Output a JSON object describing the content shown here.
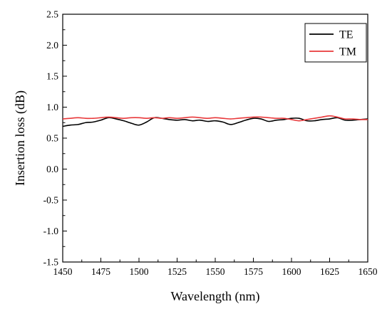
{
  "chart_data": {
    "type": "line",
    "title": "",
    "xlabel": "Wavelength (nm)",
    "ylabel": "Insertion loss (dB)",
    "xlim": [
      1450,
      1650
    ],
    "ylim": [
      -1.5,
      2.5
    ],
    "xticks": [
      "1450",
      "1475",
      "1500",
      "1525",
      "1550",
      "1575",
      "1600",
      "1625",
      "1650"
    ],
    "yticks": [
      "2.5",
      "2.0",
      "1.5",
      "1.0",
      "0.5",
      "0.0",
      "-0.5",
      "-1.0",
      "-1.5"
    ],
    "grid": false,
    "legend_position": "top-right",
    "series": [
      {
        "name": "TE",
        "color": "#000000",
        "x": [
          1450,
          1455,
          1460,
          1465,
          1470,
          1475,
          1480,
          1485,
          1490,
          1495,
          1500,
          1505,
          1510,
          1515,
          1520,
          1525,
          1530,
          1535,
          1540,
          1545,
          1550,
          1555,
          1560,
          1565,
          1570,
          1575,
          1580,
          1585,
          1590,
          1595,
          1600,
          1605,
          1610,
          1615,
          1620,
          1625,
          1630,
          1635,
          1640,
          1645,
          1650
        ],
        "y": [
          0.69,
          0.71,
          0.72,
          0.75,
          0.76,
          0.79,
          0.83,
          0.81,
          0.78,
          0.74,
          0.71,
          0.76,
          0.83,
          0.82,
          0.8,
          0.79,
          0.8,
          0.78,
          0.79,
          0.77,
          0.78,
          0.76,
          0.72,
          0.75,
          0.79,
          0.82,
          0.81,
          0.77,
          0.79,
          0.8,
          0.82,
          0.82,
          0.78,
          0.78,
          0.8,
          0.81,
          0.83,
          0.79,
          0.79,
          0.8,
          0.81
        ]
      },
      {
        "name": "TM",
        "color": "#e8383a",
        "x": [
          1450,
          1455,
          1460,
          1465,
          1470,
          1475,
          1480,
          1485,
          1490,
          1495,
          1500,
          1505,
          1510,
          1515,
          1520,
          1525,
          1530,
          1535,
          1540,
          1545,
          1550,
          1555,
          1560,
          1565,
          1570,
          1575,
          1580,
          1585,
          1590,
          1595,
          1600,
          1605,
          1610,
          1615,
          1620,
          1625,
          1630,
          1635,
          1640,
          1645,
          1650
        ],
        "y": [
          0.81,
          0.82,
          0.83,
          0.82,
          0.82,
          0.83,
          0.84,
          0.83,
          0.82,
          0.83,
          0.83,
          0.82,
          0.83,
          0.82,
          0.83,
          0.82,
          0.83,
          0.84,
          0.83,
          0.82,
          0.83,
          0.82,
          0.81,
          0.82,
          0.83,
          0.84,
          0.84,
          0.83,
          0.82,
          0.82,
          0.8,
          0.78,
          0.8,
          0.82,
          0.84,
          0.86,
          0.84,
          0.81,
          0.81,
          0.8,
          0.8
        ]
      }
    ]
  }
}
